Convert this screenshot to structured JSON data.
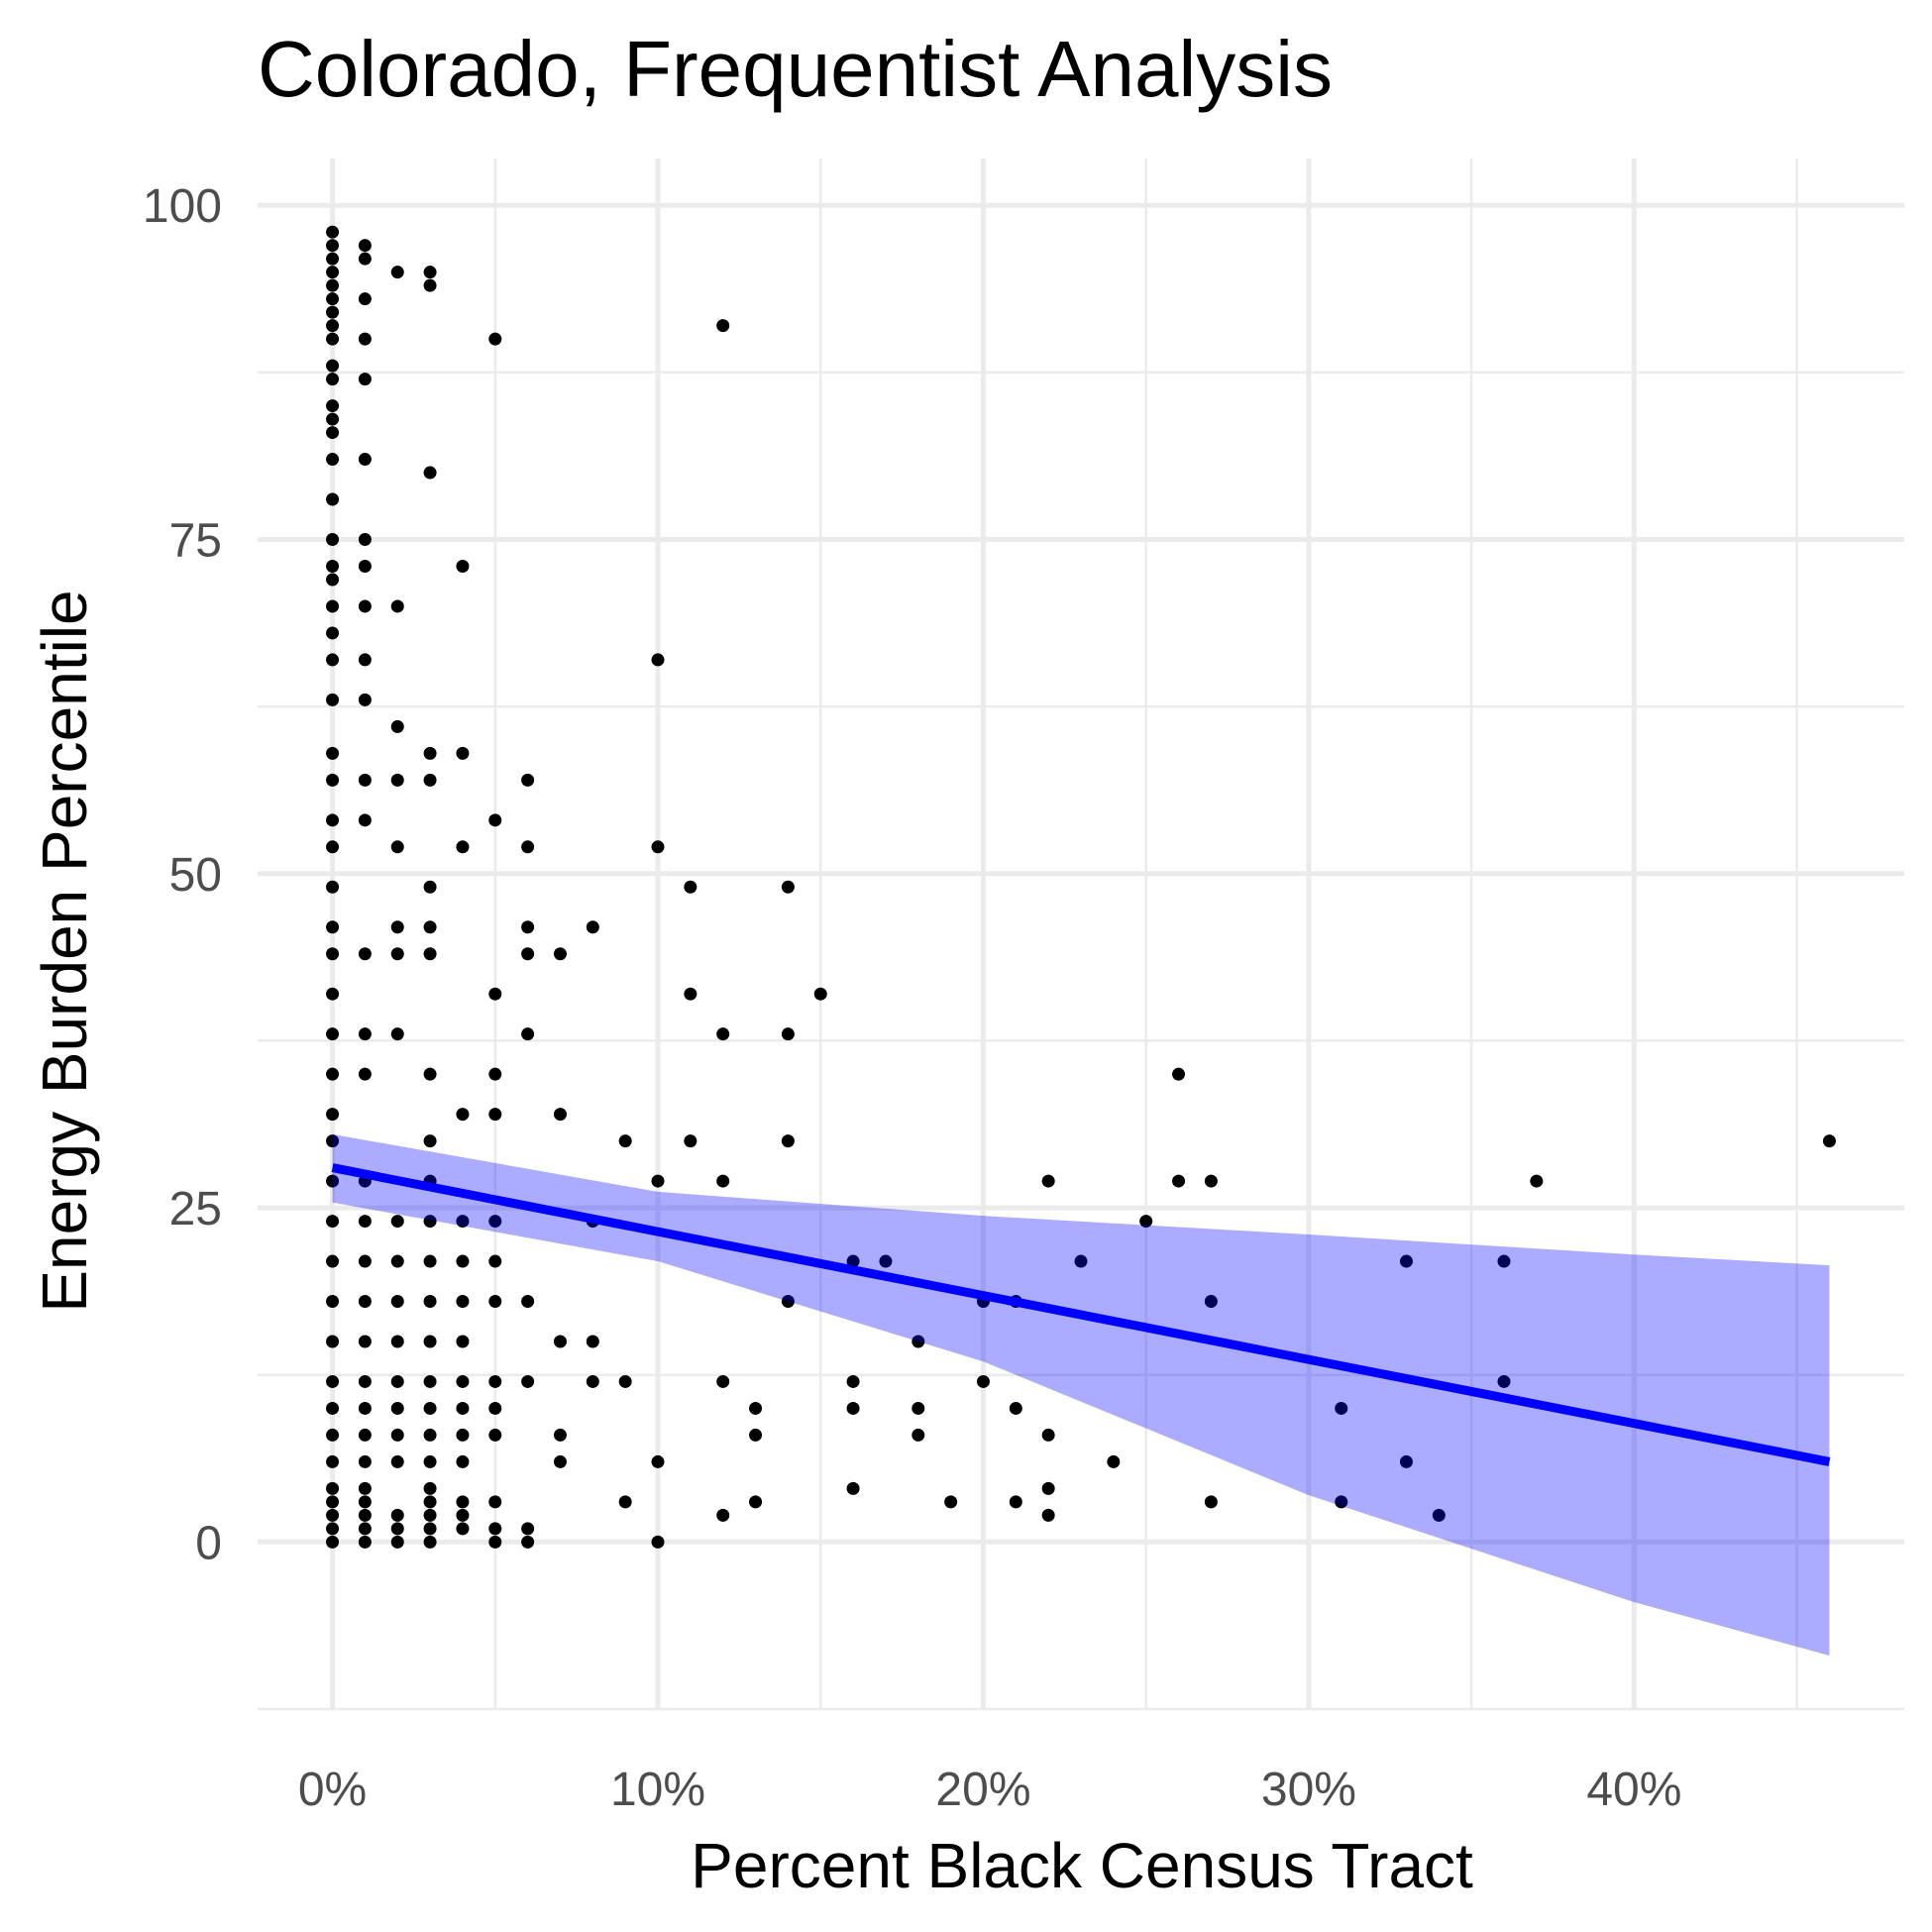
{
  "chart_data": {
    "type": "scatter",
    "title": "Colorado, Frequentist Analysis",
    "xlabel": "Percent Black Census Tract",
    "ylabel": "Energy Burden Percentile",
    "xlim": [
      -2.3,
      48.3
    ],
    "ylim": [
      -12.5,
      103.5
    ],
    "x_ticks": [
      0,
      10,
      20,
      30,
      40
    ],
    "x_tick_labels": [
      "0%",
      "10%",
      "20%",
      "30%",
      "40%"
    ],
    "x_minor_ticks": [
      5,
      15,
      25,
      35,
      45
    ],
    "y_ticks": [
      0,
      25,
      50,
      75,
      100
    ],
    "y_tick_labels": [
      "0",
      "25",
      "50",
      "75",
      "100"
    ],
    "y_minor_ticks": [
      -12.5,
      12.5,
      37.5,
      62.5,
      87.5
    ],
    "grid": true,
    "legend": "none",
    "colors": {
      "points": "#000000",
      "fit_line": "#0000ff",
      "ci_band": "#0000ff"
    },
    "fit": {
      "method": "linear",
      "line": [
        [
          0,
          28.0
        ],
        [
          46,
          6.0
        ]
      ],
      "ci_upper": [
        [
          0,
          30.5
        ],
        [
          10,
          26.2
        ],
        [
          20,
          24.4
        ],
        [
          30,
          23.0
        ],
        [
          40,
          21.5
        ],
        [
          46,
          20.7
        ]
      ],
      "ci_lower": [
        [
          0,
          25.4
        ],
        [
          10,
          21.0
        ],
        [
          20,
          13.5
        ],
        [
          30,
          3.5
        ],
        [
          40,
          -4.5
        ],
        [
          46,
          -8.5
        ]
      ]
    },
    "points": [
      [
        0,
        0
      ],
      [
        0,
        1
      ],
      [
        0,
        2
      ],
      [
        0,
        3
      ],
      [
        0,
        4
      ],
      [
        0,
        6
      ],
      [
        0,
        8
      ],
      [
        0,
        10
      ],
      [
        0,
        12
      ],
      [
        0,
        15
      ],
      [
        0,
        18
      ],
      [
        0,
        21
      ],
      [
        0,
        24
      ],
      [
        0,
        27
      ],
      [
        0,
        30
      ],
      [
        0,
        32
      ],
      [
        0,
        35
      ],
      [
        0,
        38
      ],
      [
        0,
        41
      ],
      [
        0,
        44
      ],
      [
        0,
        46
      ],
      [
        0,
        49
      ],
      [
        0,
        52
      ],
      [
        0,
        54
      ],
      [
        0,
        57
      ],
      [
        0,
        59
      ],
      [
        0,
        63
      ],
      [
        0,
        66
      ],
      [
        0,
        68
      ],
      [
        0,
        70
      ],
      [
        0,
        72
      ],
      [
        0,
        73
      ],
      [
        0,
        75
      ],
      [
        0,
        78
      ],
      [
        0,
        81
      ],
      [
        0,
        83
      ],
      [
        0,
        84
      ],
      [
        0,
        85
      ],
      [
        0,
        87
      ],
      [
        0,
        88
      ],
      [
        0,
        90
      ],
      [
        0,
        91
      ],
      [
        0,
        92
      ],
      [
        0,
        93
      ],
      [
        0,
        94
      ],
      [
        0,
        95
      ],
      [
        0,
        96
      ],
      [
        0,
        97
      ],
      [
        0,
        98
      ],
      [
        1,
        0
      ],
      [
        1,
        1
      ],
      [
        1,
        2
      ],
      [
        1,
        3
      ],
      [
        1,
        4
      ],
      [
        1,
        6
      ],
      [
        1,
        8
      ],
      [
        1,
        10
      ],
      [
        1,
        12
      ],
      [
        1,
        15
      ],
      [
        1,
        18
      ],
      [
        1,
        21
      ],
      [
        1,
        24
      ],
      [
        1,
        27
      ],
      [
        1,
        35
      ],
      [
        1,
        38
      ],
      [
        1,
        44
      ],
      [
        1,
        54
      ],
      [
        1,
        57
      ],
      [
        1,
        63
      ],
      [
        1,
        66
      ],
      [
        1,
        70
      ],
      [
        1,
        73
      ],
      [
        1,
        75
      ],
      [
        1,
        81
      ],
      [
        1,
        87
      ],
      [
        1,
        90
      ],
      [
        1,
        93
      ],
      [
        1,
        96
      ],
      [
        1,
        97
      ],
      [
        2,
        0
      ],
      [
        2,
        1
      ],
      [
        2,
        2
      ],
      [
        2,
        6
      ],
      [
        2,
        8
      ],
      [
        2,
        10
      ],
      [
        2,
        12
      ],
      [
        2,
        15
      ],
      [
        2,
        18
      ],
      [
        2,
        21
      ],
      [
        2,
        24
      ],
      [
        2,
        38
      ],
      [
        2,
        44
      ],
      [
        2,
        46
      ],
      [
        2,
        52
      ],
      [
        2,
        57
      ],
      [
        2,
        61
      ],
      [
        2,
        70
      ],
      [
        2,
        95
      ],
      [
        3,
        0
      ],
      [
        3,
        1
      ],
      [
        3,
        2
      ],
      [
        3,
        3
      ],
      [
        3,
        4
      ],
      [
        3,
        6
      ],
      [
        3,
        8
      ],
      [
        3,
        10
      ],
      [
        3,
        12
      ],
      [
        3,
        15
      ],
      [
        3,
        18
      ],
      [
        3,
        21
      ],
      [
        3,
        24
      ],
      [
        3,
        27
      ],
      [
        3,
        30
      ],
      [
        3,
        35
      ],
      [
        3,
        44
      ],
      [
        3,
        46
      ],
      [
        3,
        49
      ],
      [
        3,
        57
      ],
      [
        3,
        59
      ],
      [
        3,
        80
      ],
      [
        3,
        94
      ],
      [
        3,
        95
      ],
      [
        4,
        1
      ],
      [
        4,
        2
      ],
      [
        4,
        3
      ],
      [
        4,
        6
      ],
      [
        4,
        8
      ],
      [
        4,
        10
      ],
      [
        4,
        12
      ],
      [
        4,
        15
      ],
      [
        4,
        18
      ],
      [
        4,
        21
      ],
      [
        4,
        24
      ],
      [
        4,
        32
      ],
      [
        4,
        52
      ],
      [
        4,
        59
      ],
      [
        4,
        73
      ],
      [
        5,
        0
      ],
      [
        5,
        1
      ],
      [
        5,
        3
      ],
      [
        5,
        8
      ],
      [
        5,
        10
      ],
      [
        5,
        12
      ],
      [
        5,
        18
      ],
      [
        5,
        21
      ],
      [
        5,
        24
      ],
      [
        5,
        32
      ],
      [
        5,
        35
      ],
      [
        5,
        41
      ],
      [
        5,
        54
      ],
      [
        5,
        90
      ],
      [
        6,
        0
      ],
      [
        6,
        1
      ],
      [
        6,
        12
      ],
      [
        6,
        18
      ],
      [
        6,
        38
      ],
      [
        6,
        44
      ],
      [
        6,
        46
      ],
      [
        6,
        52
      ],
      [
        6,
        57
      ],
      [
        7,
        6
      ],
      [
        7,
        8
      ],
      [
        7,
        15
      ],
      [
        7,
        32
      ],
      [
        7,
        44
      ],
      [
        8,
        12
      ],
      [
        8,
        15
      ],
      [
        8,
        24
      ],
      [
        8,
        46
      ],
      [
        9,
        3
      ],
      [
        9,
        12
      ],
      [
        9,
        30
      ],
      [
        10,
        0
      ],
      [
        10,
        6
      ],
      [
        10,
        27
      ],
      [
        10,
        52
      ],
      [
        10,
        66
      ],
      [
        11,
        30
      ],
      [
        11,
        41
      ],
      [
        11,
        49
      ],
      [
        12,
        2
      ],
      [
        12,
        12
      ],
      [
        12,
        27
      ],
      [
        12,
        38
      ],
      [
        12,
        91
      ],
      [
        13,
        3
      ],
      [
        13,
        8
      ],
      [
        13,
        10
      ],
      [
        14,
        18
      ],
      [
        14,
        30
      ],
      [
        14,
        38
      ],
      [
        14,
        49
      ],
      [
        15,
        41
      ],
      [
        16,
        4
      ],
      [
        16,
        10
      ],
      [
        16,
        12
      ],
      [
        16,
        21
      ],
      [
        17,
        21
      ],
      [
        18,
        8
      ],
      [
        18,
        10
      ],
      [
        18,
        15
      ],
      [
        19,
        3
      ],
      [
        20,
        12
      ],
      [
        20,
        18
      ],
      [
        21,
        3
      ],
      [
        21,
        10
      ],
      [
        21,
        18
      ],
      [
        22,
        2
      ],
      [
        22,
        4
      ],
      [
        22,
        8
      ],
      [
        22,
        27
      ],
      [
        23,
        21
      ],
      [
        24,
        6
      ],
      [
        25,
        24
      ],
      [
        26,
        27
      ],
      [
        26,
        35
      ],
      [
        27,
        3
      ],
      [
        27,
        18
      ],
      [
        27,
        27
      ],
      [
        31,
        3
      ],
      [
        31,
        10
      ],
      [
        33,
        6
      ],
      [
        33,
        21
      ],
      [
        34,
        2
      ],
      [
        36,
        12
      ],
      [
        36,
        21
      ],
      [
        37,
        27
      ],
      [
        46,
        30
      ]
    ]
  }
}
